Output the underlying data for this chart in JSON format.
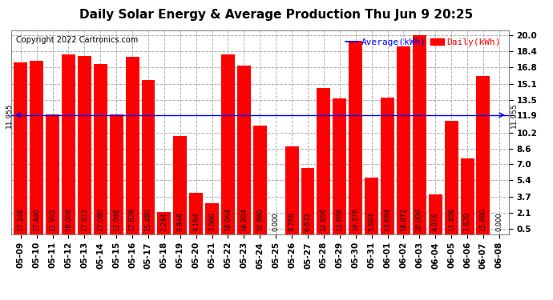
{
  "title": "Daily Solar Energy & Average Production Thu Jun 9 20:25",
  "copyright": "Copyright 2022 Cartronics.com",
  "average_value": 11.955,
  "bar_color": "#ff0000",
  "avg_line_color": "#0000ff",
  "background_color": "#ffffff",
  "plot_bg_color": "#ffffff",
  "grid_color": "#b0b0b0",
  "categories": [
    "05-09",
    "05-10",
    "05-11",
    "05-12",
    "05-13",
    "05-14",
    "05-15",
    "05-16",
    "05-17",
    "05-18",
    "05-19",
    "05-20",
    "05-21",
    "05-22",
    "05-23",
    "05-24",
    "05-25",
    "05-26",
    "05-27",
    "05-28",
    "05-29",
    "05-30",
    "05-31",
    "06-01",
    "06-02",
    "06-03",
    "06-04",
    "06-05",
    "06-06",
    "06-07",
    "06-08"
  ],
  "values": [
    17.248,
    17.44,
    11.992,
    18.008,
    17.912,
    17.08,
    12.048,
    17.828,
    15.48,
    2.244,
    9.848,
    4.164,
    3.06,
    18.064,
    16.904,
    10.88,
    0.0,
    8.768,
    6.632,
    14.656,
    13.608,
    19.376,
    5.684,
    13.684,
    18.872,
    20.008,
    4.016,
    11.408,
    7.62,
    15.88,
    0.0
  ],
  "yticks": [
    0.5,
    2.1,
    3.7,
    5.4,
    7.0,
    8.6,
    10.2,
    11.9,
    13.5,
    15.1,
    16.8,
    18.4,
    20.0
  ],
  "ylim": [
    0.0,
    20.5
  ],
  "avg_label": "Average(kWh)",
  "daily_label": "Daily(kWh)",
  "avg_annotation": "11.955",
  "title_fontsize": 11,
  "copyright_fontsize": 7,
  "bar_label_fontsize": 6,
  "tick_fontsize": 7.5,
  "legend_fontsize": 8,
  "avg_label_fontsize": 6.5
}
